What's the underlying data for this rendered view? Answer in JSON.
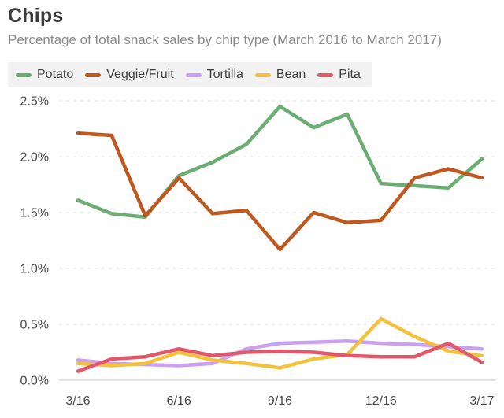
{
  "header": {
    "title": "Chips",
    "subtitle": "Percentage of total snack sales by chip type (March 2016 to March 2017)"
  },
  "legend": {
    "background": "#f2f2f2",
    "items": [
      {
        "label": "Potato",
        "color": "#6cad73"
      },
      {
        "label": "Veggie/Fruit",
        "color": "#be581f"
      },
      {
        "label": "Tortilla",
        "color": "#cba0f0"
      },
      {
        "label": "Bean",
        "color": "#f3c13b"
      },
      {
        "label": "Pita",
        "color": "#e3576b"
      }
    ]
  },
  "chart_data": {
    "type": "line",
    "title": "Chips",
    "xlabel": "",
    "ylabel": "Percentage of total snack sales",
    "units": "%",
    "x": [
      "3/16",
      "4/16",
      "5/16",
      "6/16",
      "7/16",
      "8/16",
      "9/16",
      "10/16",
      "11/16",
      "12/16",
      "1/17",
      "2/17",
      "3/17"
    ],
    "x_tick_labels": [
      "3/16",
      "6/16",
      "9/16",
      "12/16",
      "3/17"
    ],
    "x_tick_indices": [
      0,
      3,
      6,
      9,
      12
    ],
    "y_ticks": [
      0.0,
      0.5,
      1.0,
      1.5,
      2.0,
      2.5
    ],
    "y_tick_labels": [
      "0.0%",
      "0.5%",
      "1.0%",
      "1.5%",
      "2.0%",
      "2.5%"
    ],
    "ylim": [
      0,
      2.5
    ],
    "grid": "horizontal-dashed",
    "legend_position": "top",
    "series": [
      {
        "name": "Potato",
        "color": "#6cad73",
        "values": [
          1.61,
          1.49,
          1.46,
          1.83,
          1.95,
          2.11,
          2.45,
          2.26,
          2.38,
          1.76,
          1.74,
          1.72,
          1.98
        ]
      },
      {
        "name": "Veggie/Fruit",
        "color": "#be581f",
        "values": [
          2.21,
          2.19,
          1.47,
          1.81,
          1.49,
          1.52,
          1.17,
          1.5,
          1.41,
          1.43,
          1.81,
          1.89,
          1.81
        ]
      },
      {
        "name": "Tortilla",
        "color": "#cba0f0",
        "values": [
          0.18,
          0.15,
          0.14,
          0.13,
          0.15,
          0.28,
          0.33,
          0.34,
          0.35,
          0.33,
          0.32,
          0.3,
          0.28
        ]
      },
      {
        "name": "Bean",
        "color": "#f3c13b",
        "values": [
          0.15,
          0.13,
          0.15,
          0.25,
          0.18,
          0.15,
          0.11,
          0.19,
          0.23,
          0.55,
          0.39,
          0.26,
          0.22
        ]
      },
      {
        "name": "Pita",
        "color": "#e3576b",
        "values": [
          0.08,
          0.19,
          0.21,
          0.28,
          0.22,
          0.25,
          0.26,
          0.25,
          0.22,
          0.21,
          0.21,
          0.33,
          0.16
        ]
      }
    ]
  }
}
